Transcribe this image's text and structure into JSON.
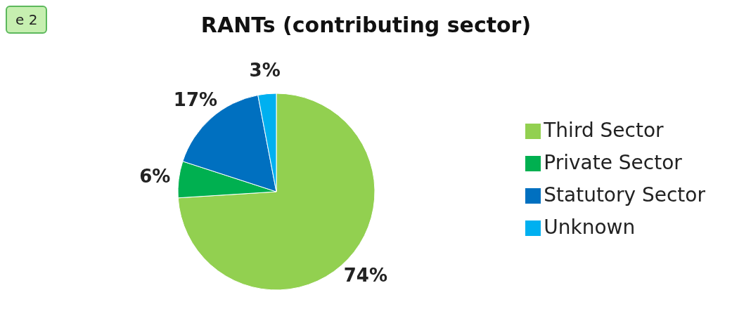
{
  "chart_data": {
    "type": "pie",
    "title": "RANTs (contributing sector)",
    "categories": [
      "Third Sector",
      "Private Sector",
      "Statutory Sector",
      "Unknown"
    ],
    "values": [
      74,
      6,
      17,
      3
    ],
    "colors": [
      "#92d050",
      "#00b050",
      "#0070c0",
      "#00b0f0"
    ],
    "value_labels": [
      "74%",
      "6%",
      "17%",
      "3%"
    ],
    "legend": "right",
    "annotations": [
      "e 2"
    ]
  }
}
